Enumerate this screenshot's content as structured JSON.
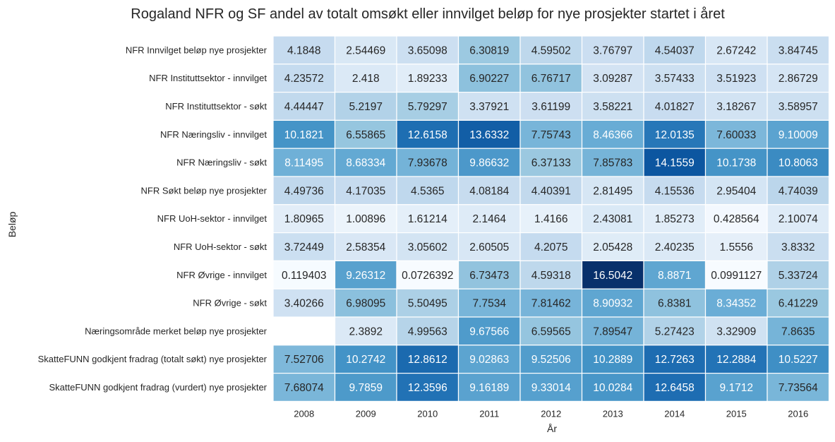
{
  "chart_data": {
    "type": "heatmap",
    "title": "Rogaland NFR og SF andel av totalt omsøkt eller innvilget beløp for nye prosjekter startet i året",
    "xlabel": "År",
    "ylabel": "Beløp",
    "x_categories": [
      "2008",
      "2009",
      "2010",
      "2011",
      "2012",
      "2013",
      "2014",
      "2015",
      "2016"
    ],
    "y_categories": [
      "NFR Innvilget beløp nye prosjekter",
      "NFR Instituttsektor - innvilget",
      "NFR Instituttsektor - søkt",
      "NFR Næringsliv - innvilget",
      "NFR Næringsliv - søkt",
      "NFR Søkt beløp nye prosjekter",
      "NFR UoH-sektor - innvilget",
      "NFR UoH-sektor - søkt",
      "NFR Øvrige - innvilget",
      "NFR Øvrige - søkt",
      "Næringsområde merket beløp nye prosjekter",
      "SkatteFUNN godkjent fradrag (totalt søkt) nye prosjekter",
      "SkatteFUNN godkjent fradrag (vurdert) nye prosjekter"
    ],
    "values": [
      [
        "4.1848",
        "2.54469",
        "3.65098",
        "6.30819",
        "4.59502",
        "3.76797",
        "4.54037",
        "2.67242",
        "3.84745"
      ],
      [
        "4.23572",
        "2.418",
        "1.89233",
        "6.90227",
        "6.76717",
        "3.09287",
        "3.57433",
        "3.51923",
        "2.86729"
      ],
      [
        "4.44447",
        "5.2197",
        "5.79297",
        "3.37921",
        "3.61199",
        "3.58221",
        "4.01827",
        "3.18267",
        "3.58957"
      ],
      [
        "10.1821",
        "6.55865",
        "12.6158",
        "13.6332",
        "7.75743",
        "8.46366",
        "12.0135",
        "7.60033",
        "9.10009"
      ],
      [
        "8.11495",
        "8.68334",
        "7.93678",
        "9.86632",
        "6.37133",
        "7.85783",
        "14.1559",
        "10.1738",
        "10.8063"
      ],
      [
        "4.49736",
        "4.17035",
        "4.5365",
        "4.08184",
        "4.40391",
        "2.81495",
        "4.15536",
        "2.95404",
        "4.74039"
      ],
      [
        "1.80965",
        "1.00896",
        "1.61214",
        "2.1464",
        "1.4166",
        "2.43081",
        "1.85273",
        "0.428564",
        "2.10074"
      ],
      [
        "3.72449",
        "2.58354",
        "3.05602",
        "2.60505",
        "4.2075",
        "2.05428",
        "2.40235",
        "1.5556",
        "3.8332"
      ],
      [
        "0.119403",
        "9.26312",
        "0.0726392",
        "6.73473",
        "4.59318",
        "16.5042",
        "8.8871",
        "0.0991127",
        "5.33724"
      ],
      [
        "3.40266",
        "6.98095",
        "5.50495",
        "7.7534",
        "7.81462",
        "8.90932",
        "6.8381",
        "8.34352",
        "6.41229"
      ],
      [
        null,
        "2.3892",
        "4.99563",
        "9.67566",
        "6.59565",
        "7.89547",
        "5.27423",
        "3.32909",
        "7.8635"
      ],
      [
        "7.52706",
        "10.2742",
        "12.8612",
        "9.02863",
        "9.52506",
        "10.2889",
        "12.7263",
        "12.2884",
        "10.5227"
      ],
      [
        "7.68074",
        "9.7859",
        "12.3596",
        "9.16189",
        "9.33014",
        "10.0284",
        "12.6458",
        "9.1712",
        "7.73564"
      ]
    ],
    "colormap": "Blues",
    "value_range": [
      0.0726392,
      16.5042
    ],
    "colorbar": false,
    "grid": false,
    "annotations": true
  }
}
